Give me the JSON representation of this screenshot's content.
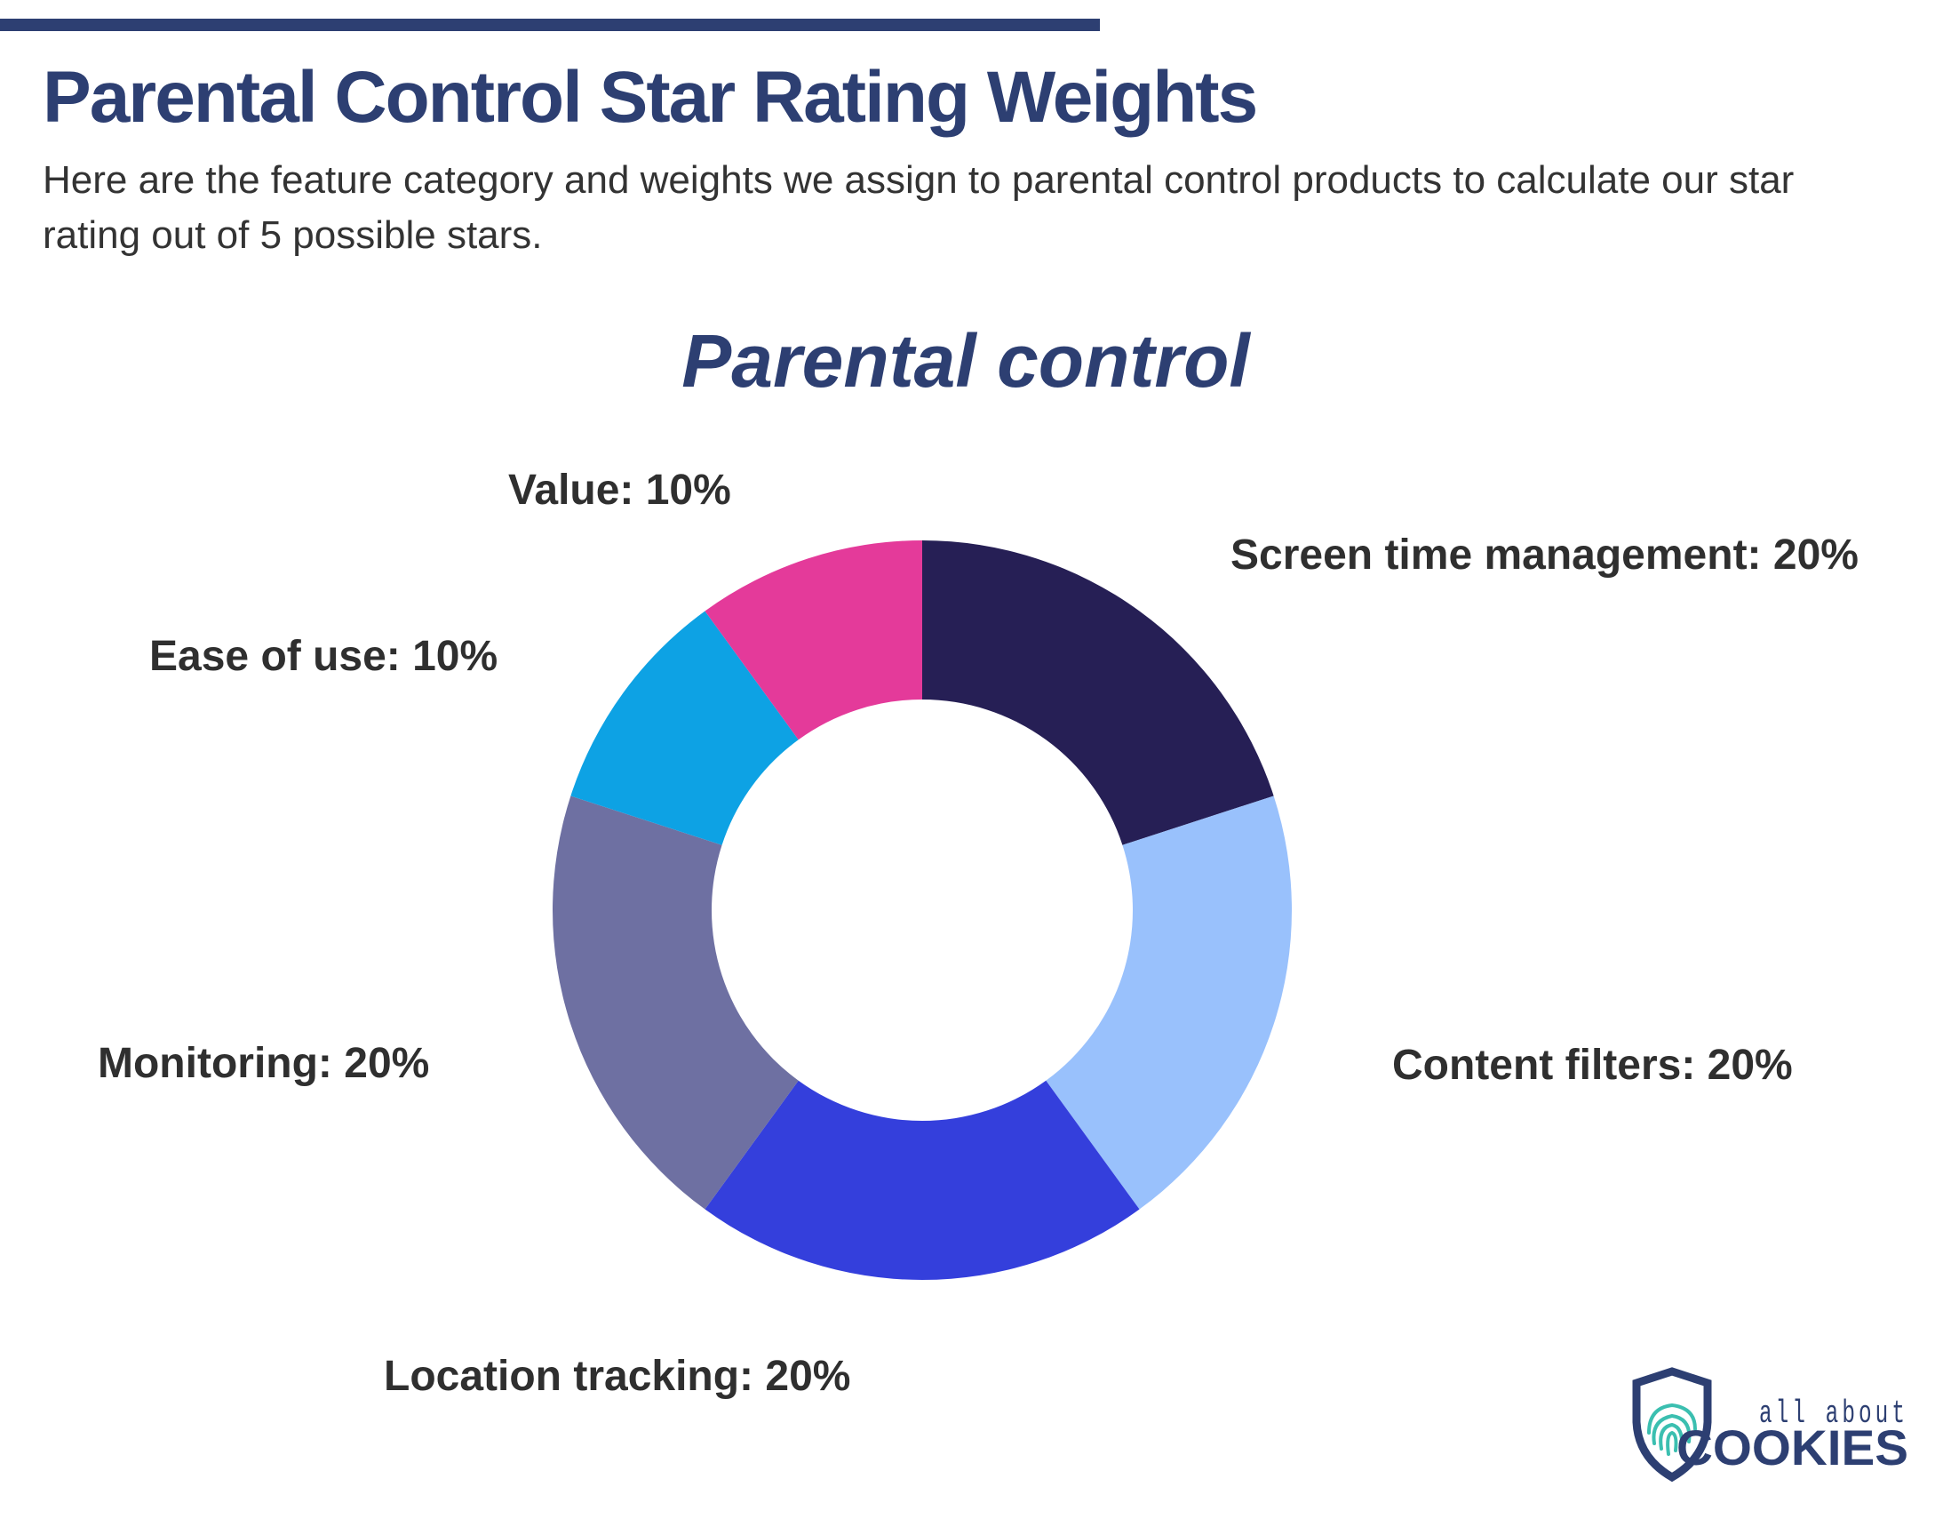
{
  "header": {
    "title": "Parental Control Star Rating Weights",
    "subtitle": "Here are the feature category and weights we assign to parental control products to calculate our star rating out of 5 possible stars."
  },
  "colors": {
    "title": "#2d3f72",
    "text": "#333333"
  },
  "chart_data": {
    "type": "pie",
    "variant": "donut",
    "title": "Parental control",
    "unit": "%",
    "slices": [
      {
        "name": "Screen time management",
        "value": 20,
        "label": "Screen time management: 20%",
        "color": "#261f55"
      },
      {
        "name": "Content filters",
        "value": 20,
        "label": "Content filters: 20%",
        "color": "#99c1fc"
      },
      {
        "name": "Location tracking",
        "value": 20,
        "label": "Location tracking: 20%",
        "color": "#343fdc"
      },
      {
        "name": "Monitoring",
        "value": 20,
        "label": "Monitoring: 20%",
        "color": "#6e70a2"
      },
      {
        "name": "Ease of use",
        "value": 10,
        "label": "Ease of use: 10%",
        "color": "#0da2e4"
      },
      {
        "name": "Value",
        "value": 10,
        "label": "Value: 10%",
        "color": "#e43a9a"
      }
    ]
  },
  "logo": {
    "line1": "all about",
    "line2": "COOKIES",
    "icon": "shield-fingerprint-icon",
    "shield_color": "#2d3f72",
    "print_color": "#3bbfb0"
  }
}
